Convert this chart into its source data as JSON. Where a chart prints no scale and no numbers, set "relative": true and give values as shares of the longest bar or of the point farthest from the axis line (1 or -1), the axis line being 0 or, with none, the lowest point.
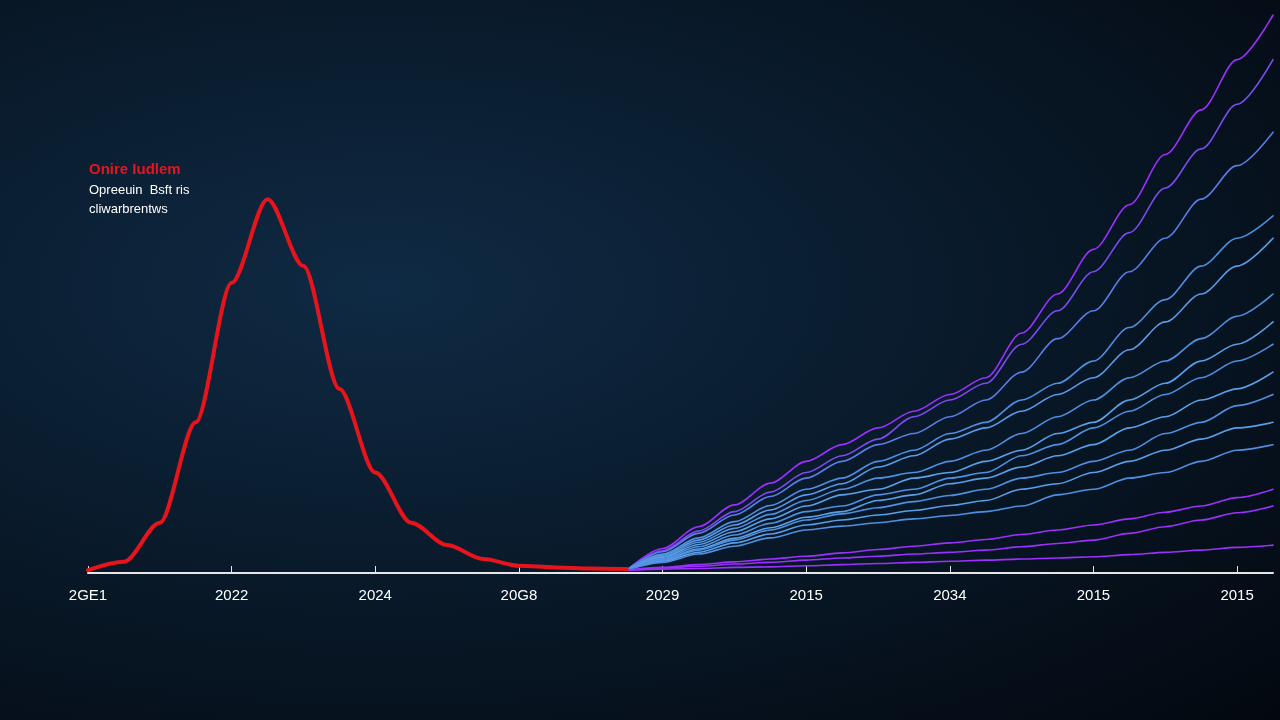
{
  "chart_data": {
    "type": "line",
    "title": "Onire Iudlem",
    "subtitle": "Opreeuin  Bsft ris\ncliwarbrentws",
    "relative": true,
    "marker": "none",
    "categories": [
      "2GE1",
      null,
      null,
      null,
      "2022",
      null,
      null,
      null,
      "2024",
      null,
      null,
      null,
      "20G8",
      null,
      null,
      null,
      "2029",
      null,
      null,
      null,
      "2015",
      null,
      null,
      null,
      "2034",
      null,
      null,
      null,
      "2015",
      null,
      null,
      null,
      "2015",
      null
    ],
    "series": [
      {
        "color": "#e8141c",
        "values": [
          0.005,
          0.02,
          0.09,
          0.27,
          0.52,
          0.67,
          0.55,
          0.33,
          0.18,
          0.09,
          0.05,
          0.025,
          0.013,
          0.01,
          0.008,
          0.007,
          null,
          null,
          null,
          null,
          null,
          null,
          null,
          null,
          null,
          null,
          null,
          null,
          null,
          null,
          null,
          null,
          null,
          null
        ]
      },
      {
        "color": "#9b30ff",
        "values": [
          null,
          null,
          null,
          null,
          null,
          null,
          null,
          null,
          null,
          null,
          null,
          null,
          null,
          null,
          null,
          0.005,
          0.044,
          0.083,
          0.122,
          0.161,
          0.2,
          0.23,
          0.26,
          0.29,
          0.32,
          0.35,
          0.43,
          0.5,
          0.58,
          0.66,
          0.75,
          0.83,
          0.92,
          1.0
        ]
      },
      {
        "color": "#7a4cf0",
        "values": [
          null,
          null,
          null,
          null,
          null,
          null,
          null,
          null,
          null,
          null,
          null,
          null,
          null,
          null,
          null,
          0.005,
          0.04,
          0.075,
          0.11,
          0.145,
          0.18,
          0.21,
          0.24,
          0.28,
          0.31,
          0.34,
          0.41,
          0.47,
          0.54,
          0.61,
          0.69,
          0.76,
          0.84,
          0.92
        ]
      },
      {
        "color": "#5a7de8",
        "values": [
          null,
          null,
          null,
          null,
          null,
          null,
          null,
          null,
          null,
          null,
          null,
          null,
          null,
          null,
          null,
          0.005,
          0.038,
          0.071,
          0.104,
          0.137,
          0.17,
          0.2,
          0.23,
          0.25,
          0.28,
          0.31,
          0.36,
          0.42,
          0.47,
          0.54,
          0.6,
          0.67,
          0.73,
          0.79
        ]
      },
      {
        "color": "#4f8fe0",
        "values": [
          null,
          null,
          null,
          null,
          null,
          null,
          null,
          null,
          null,
          null,
          null,
          null,
          null,
          null,
          null,
          0.005,
          0.034,
          0.063,
          0.092,
          0.121,
          0.15,
          0.17,
          0.2,
          0.22,
          0.25,
          0.27,
          0.31,
          0.34,
          0.38,
          0.44,
          0.49,
          0.55,
          0.6,
          0.64
        ]
      },
      {
        "color": "#5a9ae8",
        "values": [
          null,
          null,
          null,
          null,
          null,
          null,
          null,
          null,
          null,
          null,
          null,
          null,
          null,
          null,
          null,
          0.005,
          0.032,
          0.059,
          0.086,
          0.113,
          0.14,
          0.16,
          0.19,
          0.21,
          0.24,
          0.26,
          0.29,
          0.32,
          0.35,
          0.4,
          0.45,
          0.5,
          0.55,
          0.6
        ]
      },
      {
        "color": "#4f8fe0",
        "values": [
          null,
          null,
          null,
          null,
          null,
          null,
          null,
          null,
          null,
          null,
          null,
          null,
          null,
          null,
          null,
          0.005,
          0.03,
          0.055,
          0.08,
          0.105,
          0.13,
          0.15,
          0.17,
          0.18,
          0.2,
          0.22,
          0.25,
          0.28,
          0.31,
          0.35,
          0.38,
          0.42,
          0.46,
          0.5
        ]
      },
      {
        "color": "#5aa0e8",
        "values": [
          null,
          null,
          null,
          null,
          null,
          null,
          null,
          null,
          null,
          null,
          null,
          null,
          null,
          null,
          null,
          0.005,
          0.028,
          0.051,
          0.074,
          0.097,
          0.12,
          0.14,
          0.15,
          0.17,
          0.18,
          0.2,
          0.22,
          0.25,
          0.27,
          0.31,
          0.34,
          0.38,
          0.41,
          0.45
        ]
      },
      {
        "color": "#4f8fe0",
        "values": [
          null,
          null,
          null,
          null,
          null,
          null,
          null,
          null,
          null,
          null,
          null,
          null,
          null,
          null,
          null,
          0.005,
          0.026,
          0.047,
          0.068,
          0.089,
          0.11,
          0.12,
          0.14,
          0.15,
          0.17,
          0.18,
          0.21,
          0.23,
          0.26,
          0.29,
          0.32,
          0.35,
          0.38,
          0.41
        ]
      },
      {
        "color": "#5aa0e8",
        "values": [
          null,
          null,
          null,
          null,
          null,
          null,
          null,
          null,
          null,
          null,
          null,
          null,
          null,
          null,
          null,
          0.005,
          0.024,
          0.043,
          0.062,
          0.081,
          0.1,
          0.11,
          0.13,
          0.14,
          0.16,
          0.17,
          0.19,
          0.21,
          0.23,
          0.26,
          0.28,
          0.31,
          0.33,
          0.36
        ]
      },
      {
        "color": "#4f8fe0",
        "values": [
          null,
          null,
          null,
          null,
          null,
          null,
          null,
          null,
          null,
          null,
          null,
          null,
          null,
          null,
          null,
          0.005,
          0.023,
          0.041,
          0.059,
          0.077,
          0.095,
          0.106,
          0.117,
          0.128,
          0.139,
          0.15,
          0.17,
          0.18,
          0.2,
          0.22,
          0.25,
          0.27,
          0.3,
          0.32
        ]
      },
      {
        "color": "#5aa0e8",
        "values": [
          null,
          null,
          null,
          null,
          null,
          null,
          null,
          null,
          null,
          null,
          null,
          null,
          null,
          null,
          null,
          0.005,
          0.021,
          0.037,
          0.054,
          0.07,
          0.086,
          0.095,
          0.104,
          0.112,
          0.121,
          0.13,
          0.15,
          0.16,
          0.18,
          0.2,
          0.22,
          0.24,
          0.26,
          0.27
        ]
      },
      {
        "color": "#4f8fe0",
        "values": [
          null,
          null,
          null,
          null,
          null,
          null,
          null,
          null,
          null,
          null,
          null,
          null,
          null,
          null,
          null,
          0.005,
          0.019,
          0.034,
          0.048,
          0.063,
          0.077,
          0.084,
          0.09,
          0.097,
          0.103,
          0.11,
          0.12,
          0.14,
          0.15,
          0.17,
          0.18,
          0.2,
          0.22,
          0.23
        ]
      },
      {
        "color": "#9b30ff",
        "values": [
          null,
          null,
          null,
          null,
          null,
          null,
          null,
          null,
          null,
          null,
          null,
          null,
          null,
          null,
          null,
          0.005,
          0.01,
          0.015,
          0.02,
          0.025,
          0.03,
          0.036,
          0.042,
          0.048,
          0.054,
          0.06,
          0.069,
          0.077,
          0.086,
          0.097,
          0.109,
          0.12,
          0.135,
          0.15
        ]
      },
      {
        "color": "#9b30ff",
        "values": [
          null,
          null,
          null,
          null,
          null,
          null,
          null,
          null,
          null,
          null,
          null,
          null,
          null,
          null,
          null,
          0.005,
          0.009,
          0.012,
          0.016,
          0.019,
          0.023,
          0.027,
          0.03,
          0.034,
          0.037,
          0.041,
          0.047,
          0.053,
          0.059,
          0.071,
          0.083,
          0.095,
          0.108,
          0.12
        ]
      },
      {
        "color": "#9b30ff",
        "values": [
          null,
          null,
          null,
          null,
          null,
          null,
          null,
          null,
          null,
          null,
          null,
          null,
          null,
          null,
          null,
          0.005,
          0.007,
          0.008,
          0.01,
          0.011,
          0.013,
          0.015,
          0.017,
          0.019,
          0.021,
          0.023,
          0.025,
          0.027,
          0.029,
          0.033,
          0.037,
          0.041,
          0.046,
          0.05
        ]
      }
    ]
  }
}
